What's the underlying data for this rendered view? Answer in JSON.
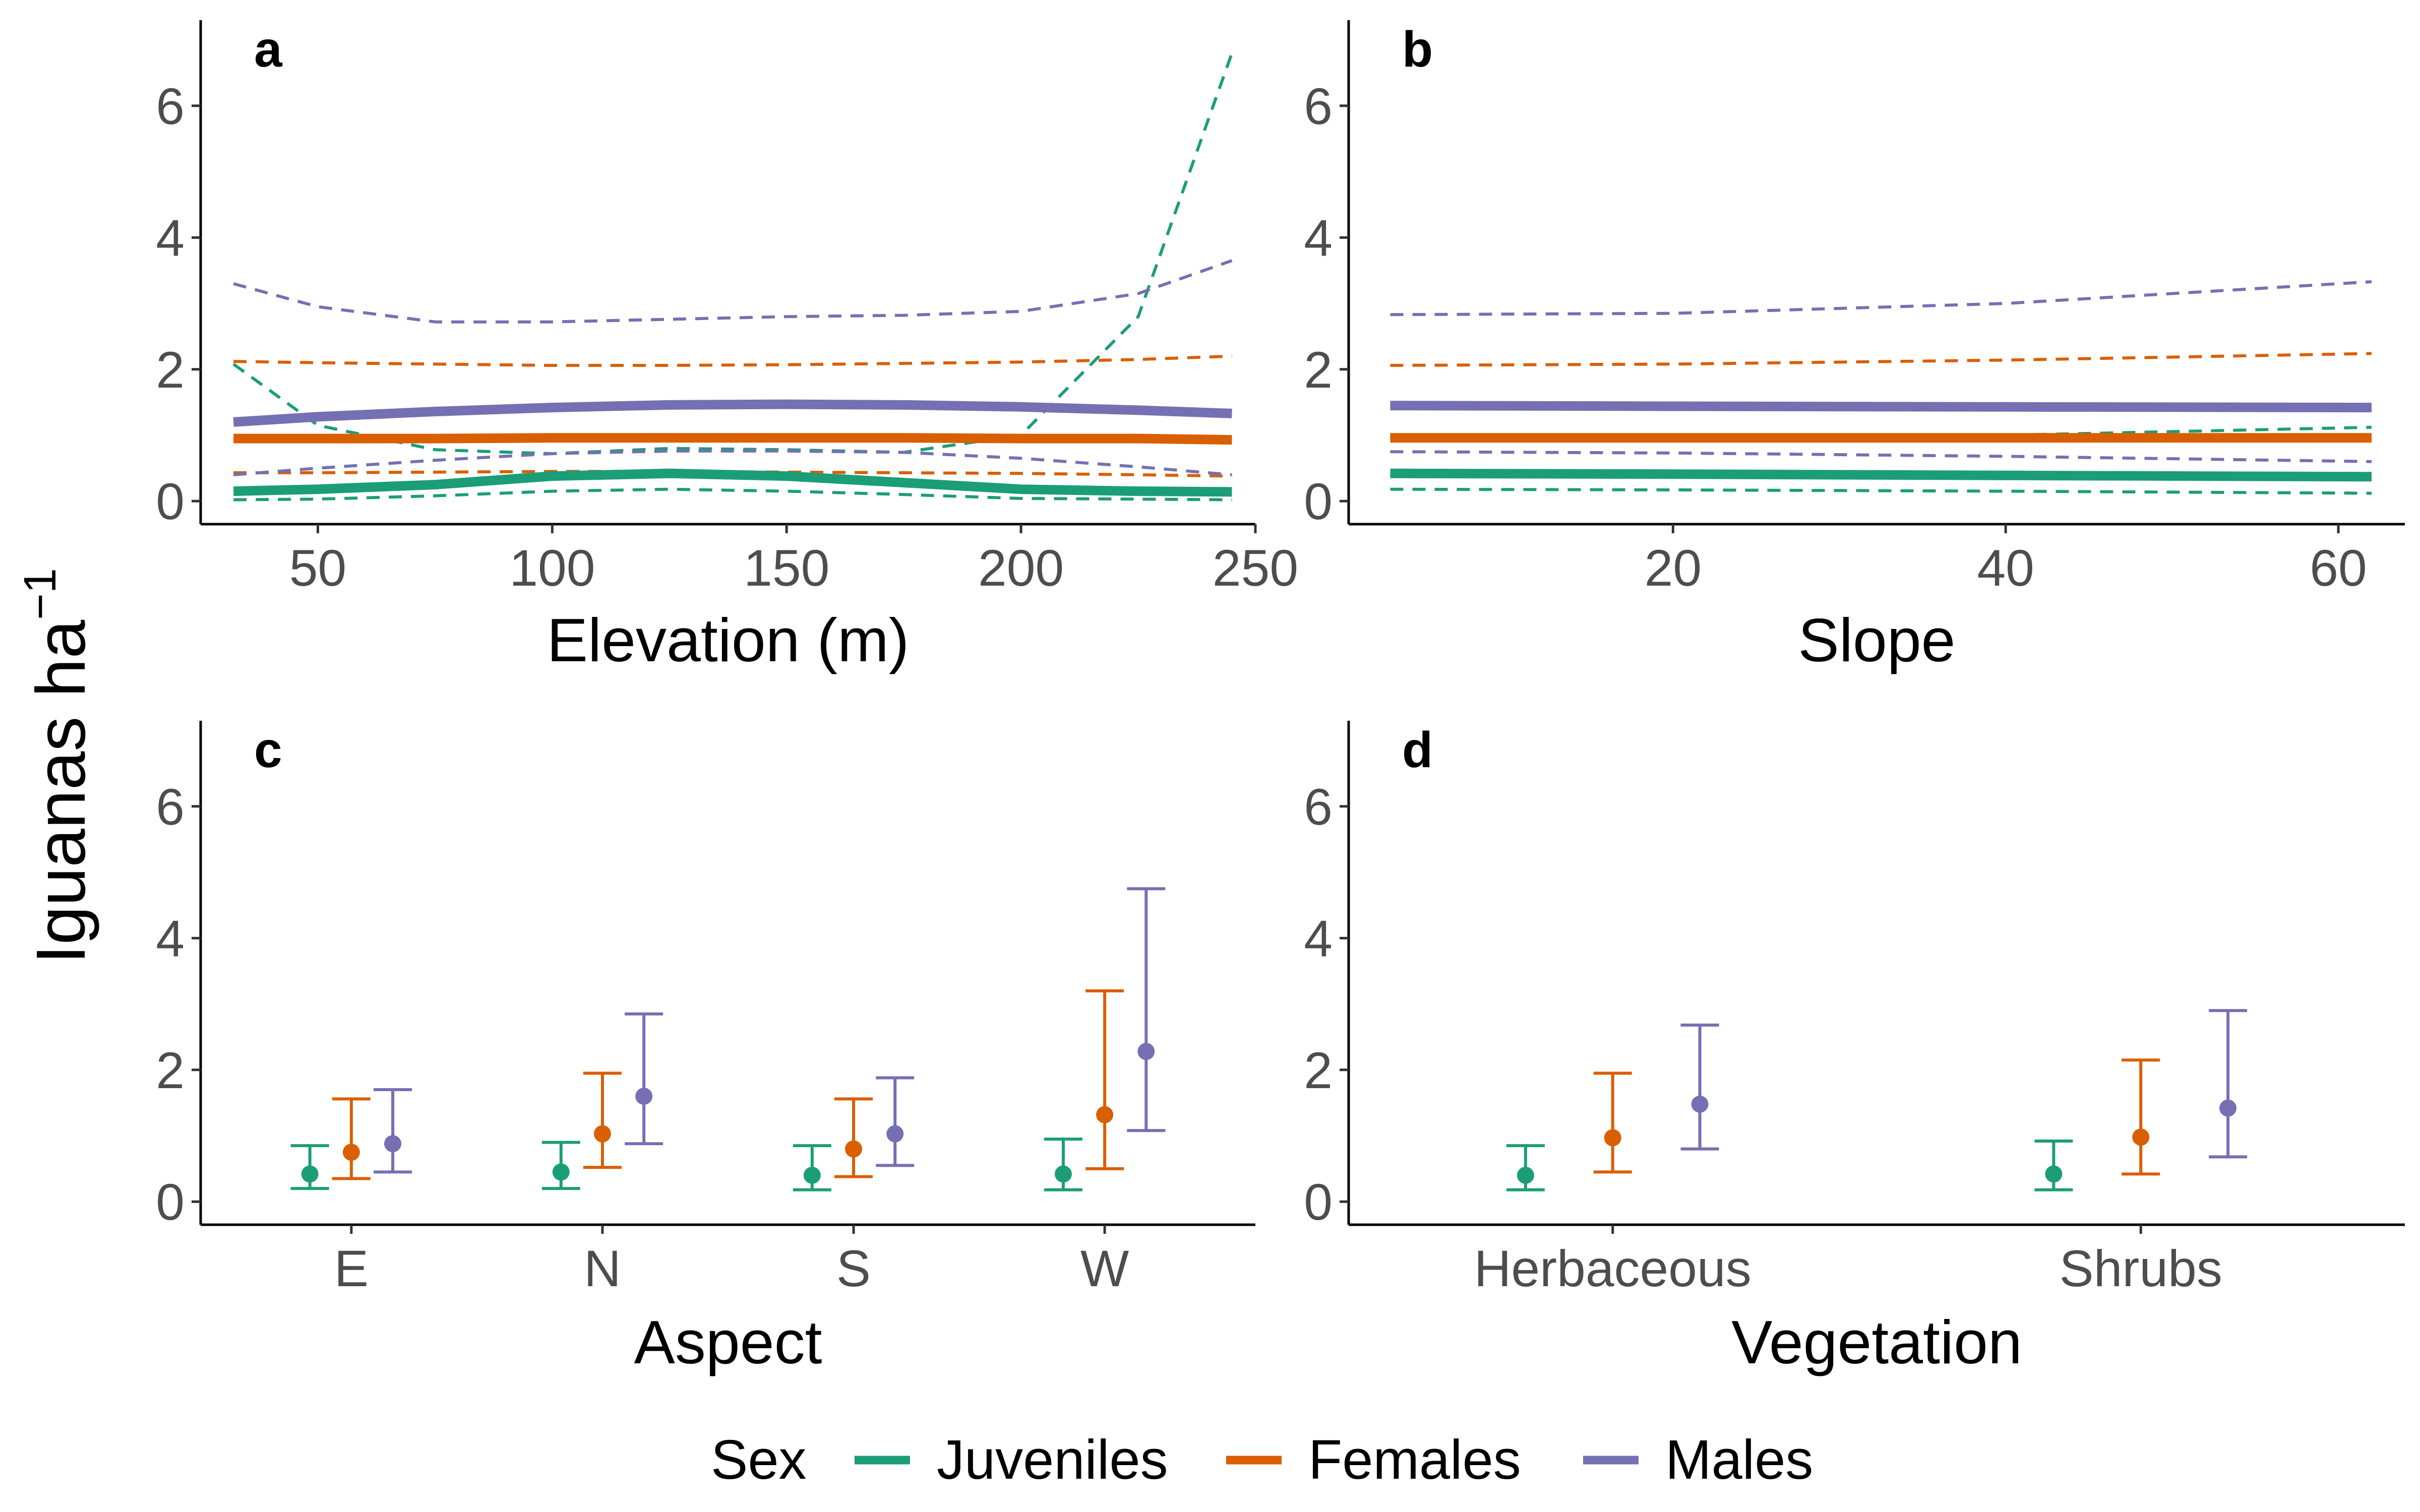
{
  "figure": {
    "ylabel": "Iguanas ha",
    "ylabel_exp": "−1"
  },
  "legend": {
    "title": "Sex",
    "items": [
      {
        "label": "Juveniles",
        "color": "#1b9e77"
      },
      {
        "label": "Females",
        "color": "#d95f02"
      },
      {
        "label": "Males",
        "color": "#7570b3"
      }
    ]
  },
  "chart_data": [
    {
      "panel": "a",
      "type": "line",
      "xlabel": "Elevation (m)",
      "xlim": [
        25,
        250
      ],
      "ylim": [
        -0.35,
        7.3
      ],
      "xticks": [
        50,
        100,
        150,
        200,
        250
      ],
      "yticks": [
        0,
        2,
        4,
        6
      ],
      "series": [
        {
          "name": "Juveniles",
          "color": "#1b9e77",
          "x": [
            32,
            50,
            75,
            100,
            125,
            150,
            175,
            200,
            225,
            245
          ],
          "mean": [
            0.15,
            0.18,
            0.25,
            0.38,
            0.42,
            0.38,
            0.28,
            0.18,
            0.15,
            0.14
          ],
          "lower": [
            0.02,
            0.03,
            0.08,
            0.15,
            0.18,
            0.15,
            0.1,
            0.04,
            0.03,
            0.02
          ],
          "upper": [
            2.08,
            1.15,
            0.78,
            0.72,
            0.8,
            0.78,
            0.74,
            1.0,
            2.8,
            6.8
          ]
        },
        {
          "name": "Females",
          "color": "#d95f02",
          "x": [
            32,
            50,
            75,
            100,
            125,
            150,
            175,
            200,
            225,
            245
          ],
          "mean": [
            0.95,
            0.95,
            0.95,
            0.96,
            0.96,
            0.96,
            0.96,
            0.95,
            0.95,
            0.93
          ],
          "lower": [
            0.43,
            0.43,
            0.44,
            0.45,
            0.45,
            0.44,
            0.43,
            0.42,
            0.4,
            0.38
          ],
          "upper": [
            2.12,
            2.1,
            2.08,
            2.06,
            2.06,
            2.07,
            2.09,
            2.11,
            2.15,
            2.2
          ]
        },
        {
          "name": "Males",
          "color": "#7570b3",
          "x": [
            32,
            50,
            75,
            100,
            125,
            150,
            175,
            200,
            225,
            245
          ],
          "mean": [
            1.2,
            1.28,
            1.36,
            1.42,
            1.46,
            1.47,
            1.46,
            1.43,
            1.38,
            1.33
          ],
          "lower": [
            0.4,
            0.5,
            0.62,
            0.72,
            0.76,
            0.76,
            0.74,
            0.65,
            0.52,
            0.4
          ],
          "upper": [
            3.3,
            2.95,
            2.72,
            2.72,
            2.76,
            2.8,
            2.82,
            2.88,
            3.15,
            3.65
          ]
        }
      ]
    },
    {
      "panel": "b",
      "type": "line",
      "xlabel": "Slope",
      "xlim": [
        0.5,
        64
      ],
      "ylim": [
        -0.35,
        7.3
      ],
      "xticks": [
        20,
        40,
        60
      ],
      "yticks": [
        0,
        2,
        4,
        6
      ],
      "series": [
        {
          "name": "Juveniles",
          "color": "#1b9e77",
          "x": [
            3,
            20,
            40,
            62
          ],
          "mean": [
            0.42,
            0.41,
            0.39,
            0.37
          ],
          "lower": [
            0.18,
            0.17,
            0.15,
            0.12
          ],
          "upper": [
            0.93,
            0.95,
            1.0,
            1.12
          ]
        },
        {
          "name": "Females",
          "color": "#d95f02",
          "x": [
            3,
            20,
            40,
            62
          ],
          "mean": [
            0.96,
            0.96,
            0.96,
            0.96
          ],
          "lower": [
            0.44,
            0.43,
            0.43,
            0.42
          ],
          "upper": [
            2.06,
            2.08,
            2.14,
            2.24
          ]
        },
        {
          "name": "Males",
          "color": "#7570b3",
          "x": [
            3,
            20,
            40,
            62
          ],
          "mean": [
            1.45,
            1.44,
            1.43,
            1.42
          ],
          "lower": [
            0.75,
            0.73,
            0.68,
            0.6
          ],
          "upper": [
            2.83,
            2.85,
            3.0,
            3.33
          ]
        }
      ]
    },
    {
      "panel": "c",
      "type": "errorbar",
      "xlabel": "Aspect",
      "categories": [
        "E",
        "N",
        "S",
        "W"
      ],
      "ylim": [
        -0.35,
        7.3
      ],
      "yticks": [
        0,
        2,
        4,
        6
      ],
      "series": [
        {
          "name": "Juveniles",
          "color": "#1b9e77",
          "mean": [
            0.42,
            0.45,
            0.4,
            0.42
          ],
          "lower": [
            0.2,
            0.2,
            0.18,
            0.18
          ],
          "upper": [
            0.85,
            0.9,
            0.85,
            0.95
          ]
        },
        {
          "name": "Females",
          "color": "#d95f02",
          "mean": [
            0.75,
            1.03,
            0.8,
            1.32
          ],
          "lower": [
            0.35,
            0.52,
            0.38,
            0.5
          ],
          "upper": [
            1.56,
            1.95,
            1.56,
            3.2
          ]
        },
        {
          "name": "Males",
          "color": "#7570b3",
          "mean": [
            0.88,
            1.6,
            1.03,
            2.28
          ],
          "lower": [
            0.45,
            0.88,
            0.55,
            1.08
          ],
          "upper": [
            1.7,
            2.85,
            1.88,
            4.75
          ]
        }
      ]
    },
    {
      "panel": "d",
      "type": "errorbar",
      "xlabel": "Vegetation",
      "categories": [
        "Herbaceous",
        "Shrubs"
      ],
      "ylim": [
        -0.35,
        7.3
      ],
      "yticks": [
        0,
        2,
        4,
        6
      ],
      "series": [
        {
          "name": "Juveniles",
          "color": "#1b9e77",
          "mean": [
            0.4,
            0.42
          ],
          "lower": [
            0.18,
            0.18
          ],
          "upper": [
            0.85,
            0.92
          ]
        },
        {
          "name": "Females",
          "color": "#d95f02",
          "mean": [
            0.97,
            0.98
          ],
          "lower": [
            0.45,
            0.42
          ],
          "upper": [
            1.95,
            2.15
          ]
        },
        {
          "name": "Males",
          "color": "#7570b3",
          "mean": [
            1.48,
            1.42
          ],
          "lower": [
            0.8,
            0.68
          ],
          "upper": [
            2.68,
            2.9
          ]
        }
      ]
    }
  ]
}
